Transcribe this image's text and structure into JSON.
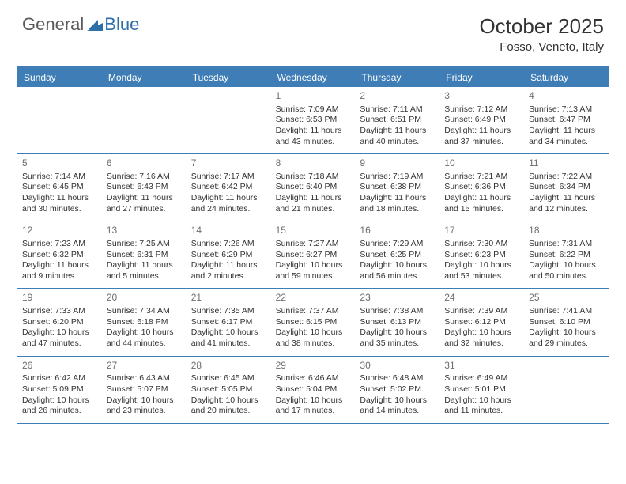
{
  "branding": {
    "logo_general": "General",
    "logo_blue": "Blue",
    "logo_fill": "#2f6fa8",
    "logo_text_color": "#5a5a5a"
  },
  "header": {
    "month_title": "October 2025",
    "location": "Fosso, Veneto, Italy"
  },
  "colors": {
    "header_bg": "#3e7db5",
    "header_text": "#ffffff",
    "border": "#3e7db5",
    "daynum": "#6e6e6e",
    "body_text": "#333333",
    "background": "#ffffff"
  },
  "day_labels": [
    "Sunday",
    "Monday",
    "Tuesday",
    "Wednesday",
    "Thursday",
    "Friday",
    "Saturday"
  ],
  "weeks": [
    [
      {
        "n": "",
        "sr": "",
        "ss": "",
        "dl": ""
      },
      {
        "n": "",
        "sr": "",
        "ss": "",
        "dl": ""
      },
      {
        "n": "",
        "sr": "",
        "ss": "",
        "dl": ""
      },
      {
        "n": "1",
        "sr": "Sunrise: 7:09 AM",
        "ss": "Sunset: 6:53 PM",
        "dl": "Daylight: 11 hours and 43 minutes."
      },
      {
        "n": "2",
        "sr": "Sunrise: 7:11 AM",
        "ss": "Sunset: 6:51 PM",
        "dl": "Daylight: 11 hours and 40 minutes."
      },
      {
        "n": "3",
        "sr": "Sunrise: 7:12 AM",
        "ss": "Sunset: 6:49 PM",
        "dl": "Daylight: 11 hours and 37 minutes."
      },
      {
        "n": "4",
        "sr": "Sunrise: 7:13 AM",
        "ss": "Sunset: 6:47 PM",
        "dl": "Daylight: 11 hours and 34 minutes."
      }
    ],
    [
      {
        "n": "5",
        "sr": "Sunrise: 7:14 AM",
        "ss": "Sunset: 6:45 PM",
        "dl": "Daylight: 11 hours and 30 minutes."
      },
      {
        "n": "6",
        "sr": "Sunrise: 7:16 AM",
        "ss": "Sunset: 6:43 PM",
        "dl": "Daylight: 11 hours and 27 minutes."
      },
      {
        "n": "7",
        "sr": "Sunrise: 7:17 AM",
        "ss": "Sunset: 6:42 PM",
        "dl": "Daylight: 11 hours and 24 minutes."
      },
      {
        "n": "8",
        "sr": "Sunrise: 7:18 AM",
        "ss": "Sunset: 6:40 PM",
        "dl": "Daylight: 11 hours and 21 minutes."
      },
      {
        "n": "9",
        "sr": "Sunrise: 7:19 AM",
        "ss": "Sunset: 6:38 PM",
        "dl": "Daylight: 11 hours and 18 minutes."
      },
      {
        "n": "10",
        "sr": "Sunrise: 7:21 AM",
        "ss": "Sunset: 6:36 PM",
        "dl": "Daylight: 11 hours and 15 minutes."
      },
      {
        "n": "11",
        "sr": "Sunrise: 7:22 AM",
        "ss": "Sunset: 6:34 PM",
        "dl": "Daylight: 11 hours and 12 minutes."
      }
    ],
    [
      {
        "n": "12",
        "sr": "Sunrise: 7:23 AM",
        "ss": "Sunset: 6:32 PM",
        "dl": "Daylight: 11 hours and 9 minutes."
      },
      {
        "n": "13",
        "sr": "Sunrise: 7:25 AM",
        "ss": "Sunset: 6:31 PM",
        "dl": "Daylight: 11 hours and 5 minutes."
      },
      {
        "n": "14",
        "sr": "Sunrise: 7:26 AM",
        "ss": "Sunset: 6:29 PM",
        "dl": "Daylight: 11 hours and 2 minutes."
      },
      {
        "n": "15",
        "sr": "Sunrise: 7:27 AM",
        "ss": "Sunset: 6:27 PM",
        "dl": "Daylight: 10 hours and 59 minutes."
      },
      {
        "n": "16",
        "sr": "Sunrise: 7:29 AM",
        "ss": "Sunset: 6:25 PM",
        "dl": "Daylight: 10 hours and 56 minutes."
      },
      {
        "n": "17",
        "sr": "Sunrise: 7:30 AM",
        "ss": "Sunset: 6:23 PM",
        "dl": "Daylight: 10 hours and 53 minutes."
      },
      {
        "n": "18",
        "sr": "Sunrise: 7:31 AM",
        "ss": "Sunset: 6:22 PM",
        "dl": "Daylight: 10 hours and 50 minutes."
      }
    ],
    [
      {
        "n": "19",
        "sr": "Sunrise: 7:33 AM",
        "ss": "Sunset: 6:20 PM",
        "dl": "Daylight: 10 hours and 47 minutes."
      },
      {
        "n": "20",
        "sr": "Sunrise: 7:34 AM",
        "ss": "Sunset: 6:18 PM",
        "dl": "Daylight: 10 hours and 44 minutes."
      },
      {
        "n": "21",
        "sr": "Sunrise: 7:35 AM",
        "ss": "Sunset: 6:17 PM",
        "dl": "Daylight: 10 hours and 41 minutes."
      },
      {
        "n": "22",
        "sr": "Sunrise: 7:37 AM",
        "ss": "Sunset: 6:15 PM",
        "dl": "Daylight: 10 hours and 38 minutes."
      },
      {
        "n": "23",
        "sr": "Sunrise: 7:38 AM",
        "ss": "Sunset: 6:13 PM",
        "dl": "Daylight: 10 hours and 35 minutes."
      },
      {
        "n": "24",
        "sr": "Sunrise: 7:39 AM",
        "ss": "Sunset: 6:12 PM",
        "dl": "Daylight: 10 hours and 32 minutes."
      },
      {
        "n": "25",
        "sr": "Sunrise: 7:41 AM",
        "ss": "Sunset: 6:10 PM",
        "dl": "Daylight: 10 hours and 29 minutes."
      }
    ],
    [
      {
        "n": "26",
        "sr": "Sunrise: 6:42 AM",
        "ss": "Sunset: 5:09 PM",
        "dl": "Daylight: 10 hours and 26 minutes."
      },
      {
        "n": "27",
        "sr": "Sunrise: 6:43 AM",
        "ss": "Sunset: 5:07 PM",
        "dl": "Daylight: 10 hours and 23 minutes."
      },
      {
        "n": "28",
        "sr": "Sunrise: 6:45 AM",
        "ss": "Sunset: 5:05 PM",
        "dl": "Daylight: 10 hours and 20 minutes."
      },
      {
        "n": "29",
        "sr": "Sunrise: 6:46 AM",
        "ss": "Sunset: 5:04 PM",
        "dl": "Daylight: 10 hours and 17 minutes."
      },
      {
        "n": "30",
        "sr": "Sunrise: 6:48 AM",
        "ss": "Sunset: 5:02 PM",
        "dl": "Daylight: 10 hours and 14 minutes."
      },
      {
        "n": "31",
        "sr": "Sunrise: 6:49 AM",
        "ss": "Sunset: 5:01 PM",
        "dl": "Daylight: 10 hours and 11 minutes."
      },
      {
        "n": "",
        "sr": "",
        "ss": "",
        "dl": ""
      }
    ]
  ]
}
